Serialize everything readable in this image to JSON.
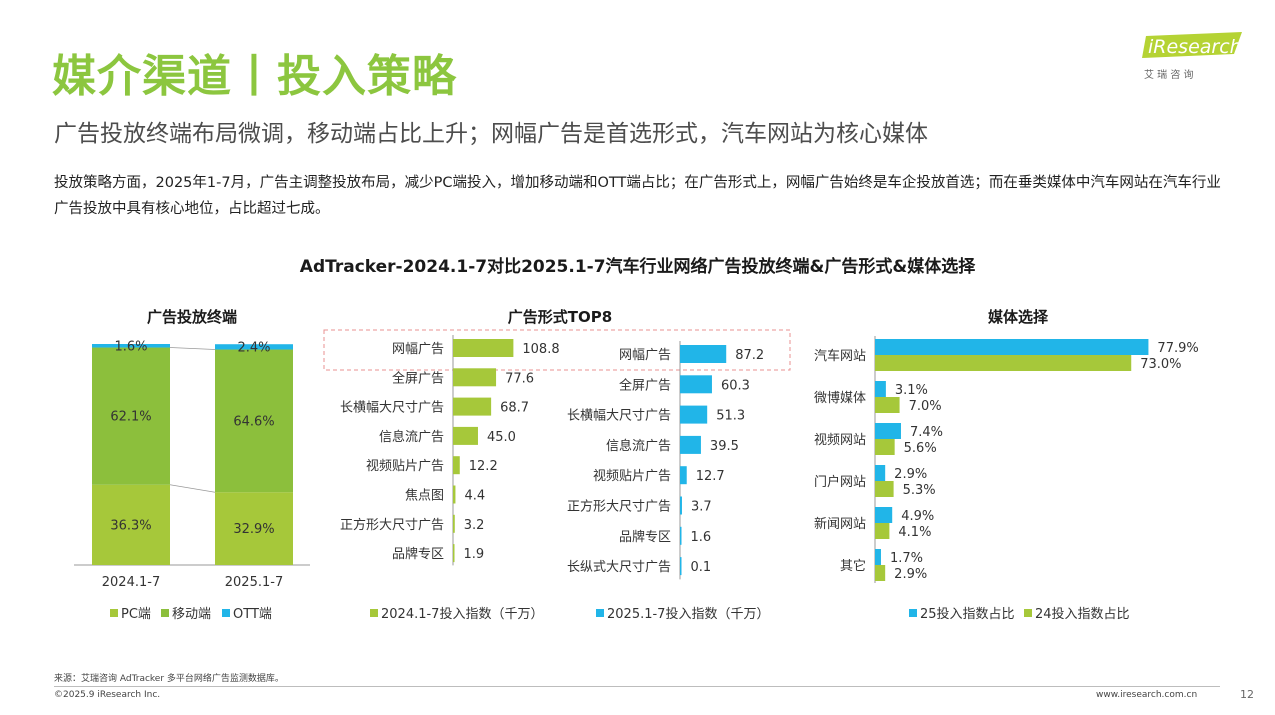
{
  "header": {
    "title": "媒介渠道丨投入策略",
    "subtitle": "广告投放终端布局微调，移动端占比上升；网幅广告是首选形式，汽车网站为核心媒体",
    "description": "投放策略方面，2025年1-7月，广告主调整投放布局，减少PC端投入，增加移动端和OTT端占比；在广告形式上，网幅广告始终是车企投放首选；而在垂类媒体中汽车网站在汽车行业广告投放中具有核心地位，占比超过七成。",
    "logo_text": "iResearch",
    "logo_sub": "艾 瑞 咨 询",
    "section_title": "AdTracker-2024.1-7对比2025.1-7汽车行业网络广告投放终端&广告形式&媒体选择"
  },
  "colors": {
    "green": "#a6c83a",
    "blue": "#21b5e8",
    "title_green": "#8cc63f",
    "dashed_red": "#e89090"
  },
  "chart_data": [
    {
      "type": "bar",
      "stacked": "percent",
      "title": "广告投放终端",
      "categories": [
        "2024.1-7",
        "2025.1-7"
      ],
      "series": [
        {
          "name": "PC端",
          "values": [
            36.3,
            32.9
          ],
          "labels": [
            "36.3%",
            "32.9%"
          ],
          "color": "#a6c83a"
        },
        {
          "name": "移动端",
          "values": [
            62.1,
            64.6
          ],
          "labels": [
            "62.1%",
            "64.6%"
          ],
          "color": "#8cbf3c"
        },
        {
          "name": "OTT端",
          "values": [
            1.6,
            2.4
          ],
          "labels": [
            "1.6%",
            "2.4%"
          ],
          "color": "#21b5e8"
        }
      ],
      "legend_position": "bottom"
    },
    {
      "type": "bar",
      "orientation": "horizontal",
      "title": "广告形式TOP8",
      "panels": [
        {
          "name": "2024.1-7投入指数（千万）",
          "color": "#a6c83a",
          "categories": [
            "网幅广告",
            "全屏广告",
            "长横幅大尺寸广告",
            "信息流广告",
            "视频贴片广告",
            "焦点图",
            "正方形大尺寸广告",
            "品牌专区"
          ],
          "values": [
            108.8,
            77.6,
            68.7,
            45.0,
            12.2,
            4.4,
            3.2,
            1.9
          ],
          "labels": [
            "108.8",
            "77.6",
            "68.7",
            "45.0",
            "12.2",
            "4.4",
            "3.2",
            "1.9"
          ]
        },
        {
          "name": "2025.1-7投入指数（千万）",
          "color": "#21b5e8",
          "categories": [
            "网幅广告",
            "全屏广告",
            "长横幅大尺寸广告",
            "信息流广告",
            "视频贴片广告",
            "正方形大尺寸广告",
            "品牌专区",
            "长纵式大尺寸广告"
          ],
          "values": [
            87.2,
            60.3,
            51.3,
            39.5,
            12.7,
            3.7,
            1.6,
            0.1
          ],
          "labels": [
            "87.2",
            "60.3",
            "51.3",
            "39.5",
            "12.7",
            "3.7",
            "1.6",
            "0.1"
          ]
        }
      ],
      "legend_position": "bottom"
    },
    {
      "type": "bar",
      "orientation": "horizontal",
      "title": "媒体选择",
      "categories": [
        "汽车网站",
        "微博媒体",
        "视频网站",
        "门户网站",
        "新闻网站",
        "其它"
      ],
      "series": [
        {
          "name": "25投入指数占比",
          "values": [
            77.9,
            3.1,
            7.4,
            2.9,
            4.9,
            1.7
          ],
          "labels": [
            "77.9%",
            "3.1%",
            "7.4%",
            "2.9%",
            "4.9%",
            "1.7%"
          ],
          "color": "#21b5e8"
        },
        {
          "name": "24投入指数占比",
          "values": [
            73.0,
            7.0,
            5.6,
            5.3,
            4.1,
            2.9
          ],
          "labels": [
            "73.0%",
            "7.0%",
            "5.6%",
            "5.3%",
            "4.1%",
            "2.9%"
          ],
          "color": "#a6c83a"
        }
      ],
      "legend_position": "bottom"
    }
  ],
  "footer": {
    "source": "来源：艾瑞咨询 AdTracker 多平台网络广告监测数据库。",
    "copyright": "©2025.9 iResearch Inc.",
    "url": "www.iresearch.com.cn",
    "page_number": "12"
  }
}
